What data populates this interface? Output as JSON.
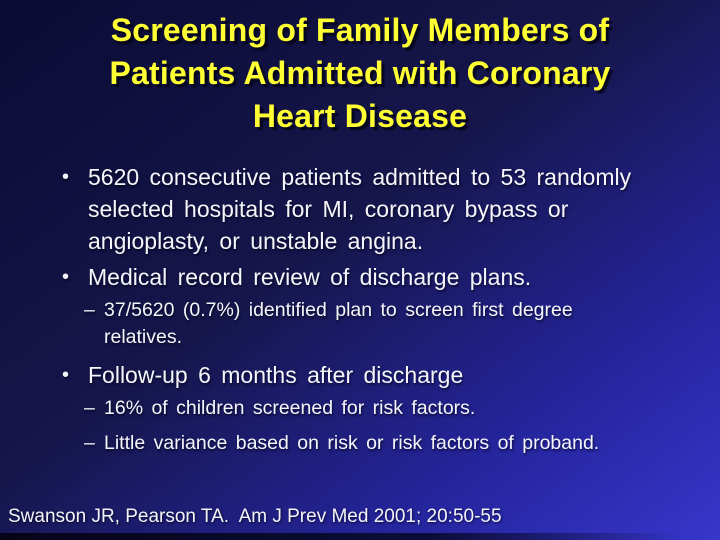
{
  "slide": {
    "title": {
      "lines": [
        "Screening of Family Members of",
        "Patients Admitted with Coronary",
        "Heart Disease"
      ]
    },
    "bullets": [
      {
        "level": 1,
        "marker": "•",
        "text": "5620 consecutive patients admitted to 53 randomly selected hospitals for MI, coronary bypass or angioplasty, or unstable angina."
      },
      {
        "level": 1,
        "marker": "•",
        "text": "Medical record review of discharge plans."
      },
      {
        "level": 2,
        "marker": "–",
        "text": "37/5620 (0.7%) identified plan to screen first degree relatives."
      },
      {
        "level": 1,
        "marker": "•",
        "text": "Follow-up 6 months after discharge"
      },
      {
        "level": 2,
        "marker": "–",
        "text": "16% of children screened for risk factors."
      },
      {
        "level": 2,
        "marker": "–",
        "text": "Little variance based on risk or risk factors of proband."
      }
    ],
    "citation": {
      "text": "Swanson JR, Pearson TA.  Am J Prev Med 2001; 20:50-55"
    },
    "colors": {
      "background_top_left": "#0b0b34",
      "background_bottom_right": "#3636cc",
      "title_yellow": "#ffff33",
      "body_text": "#f6f6fa"
    }
  }
}
